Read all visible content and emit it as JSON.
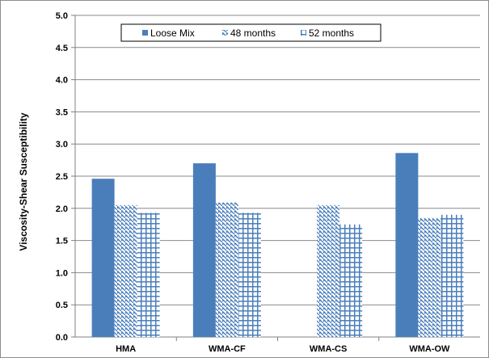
{
  "chart_data": {
    "type": "bar",
    "title": "",
    "xlabel": "",
    "ylabel": "Viscosity-Shear Susceptibility",
    "ylim": [
      0,
      5
    ],
    "yticks": [
      0.0,
      0.5,
      1.0,
      1.5,
      2.0,
      2.5,
      3.0,
      3.5,
      4.0,
      4.5,
      5.0
    ],
    "ytick_labels": [
      "0.0",
      "0.5",
      "1.0",
      "1.5",
      "2.0",
      "2.5",
      "3.0",
      "3.5",
      "4.0",
      "4.5",
      "5.0"
    ],
    "grid": true,
    "legend_position": "top",
    "categories": [
      "HMA",
      "WMA-CF",
      "WMA-CS",
      "WMA-OW"
    ],
    "series": [
      {
        "name": "Loose Mix",
        "values": [
          2.46,
          2.7,
          null,
          2.86
        ],
        "color": "#4a7ebb",
        "pattern": "solid"
      },
      {
        "name": "48 months",
        "values": [
          2.05,
          2.09,
          2.05,
          1.85
        ],
        "color": "#4a7ebb",
        "pattern": "diagonal"
      },
      {
        "name": "52 months",
        "values": [
          1.93,
          1.93,
          1.75,
          1.9
        ],
        "color": "#4a7ebb",
        "pattern": "grid"
      }
    ]
  }
}
